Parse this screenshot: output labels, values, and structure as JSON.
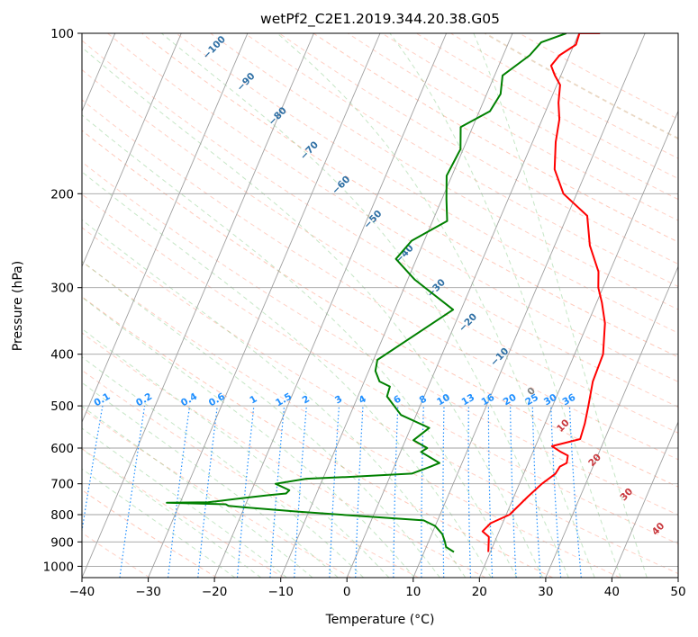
{
  "chart_data": {
    "type": "line",
    "subtype": "skew-t log-p diagram",
    "title": "wetPf2_C2E1.2019.344.20.38.G05",
    "xlabel": "Temperature (°C)",
    "ylabel": "Pressure (hPa)",
    "xlim": [
      -40,
      50
    ],
    "ylim": [
      1050,
      100
    ],
    "y_scale": "log",
    "grid": true,
    "x_ticks": [
      "−40",
      "−30",
      "−20",
      "−10",
      "0",
      "10",
      "20",
      "30",
      "40",
      "50"
    ],
    "y_ticks": [
      "100",
      "200",
      "300",
      "400",
      "500",
      "600",
      "700",
      "800",
      "900",
      "1000"
    ],
    "series": [
      {
        "role": "temperature",
        "color": "#ff0000",
        "x": [
          19.7,
          18.8,
          17.5,
          18.2,
          20.5,
          22.1,
          23.4,
          24.8,
          25.0,
          25.8,
          25.5,
          24.2,
          22.5,
          26.3,
          26.0,
          25.4,
          24.5,
          24.3,
          22.6,
          20.8,
          19.3,
          18.3,
          15.3,
          13.0,
          8.0,
          5.1,
          3.5,
          2.6,
          1.4,
          0.5,
          -0.9,
          -2.1,
          -1.5,
          0.3,
          0.1,
          3.2
        ],
        "y": [
          940,
          880,
          860,
          830,
          800,
          740,
          700,
          670,
          650,
          640,
          620,
          610,
          595,
          577,
          540,
          500,
          450,
          400,
          350,
          320,
          300,
          280,
          250,
          220,
          200,
          180,
          160,
          145,
          135,
          125,
          120,
          115,
          110,
          105,
          100,
          100
        ]
      },
      {
        "role": "dewpoint",
        "color": "#008000",
        "x": [
          14.5,
          13.0,
          12.5,
          11.6,
          10.0,
          7.9,
          -11.5,
          -20.0,
          -22.5,
          -23.0,
          -32.0,
          -25.8,
          -24.5,
          -21.0,
          -17.0,
          -14.6,
          -14.3,
          -16.8,
          -12.5,
          -6.6,
          3.1,
          5.5,
          6.6,
          3.1,
          3.8,
          1.2,
          2.8,
          -2.3,
          -5.6,
          -5.8,
          -7.7,
          -9.0,
          -9.4,
          -1.2,
          -8.9,
          -13.1,
          -11.9,
          -7.8,
          -9.3,
          -10.8,
          -10.4,
          -11.8,
          -8.4,
          -7.9,
          -8.8,
          -6.0,
          -5.1,
          -1.9
        ],
        "y": [
          940,
          920,
          900,
          870,
          840,
          820,
          790,
          775,
          770,
          765,
          760,
          758,
          755,
          745,
          735,
          730,
          720,
          700,
          685,
          680,
          670,
          650,
          640,
          610,
          600,
          580,
          550,
          520,
          480,
          460,
          450,
          430,
          410,
          330,
          290,
          265,
          245,
          225,
          205,
          185,
          165,
          150,
          140,
          130,
          120,
          110,
          104,
          100
        ]
      }
    ],
    "annotations": {
      "dry_adiabat_labels": [
        "−100",
        "−90",
        "−80",
        "−70",
        "−60",
        "−50",
        "−40",
        "−30",
        "−20",
        "−10",
        "0",
        "10",
        "20",
        "30",
        "40"
      ],
      "mixing_ratio_labels": [
        "0.1",
        "0.2",
        "0.4",
        "0.6",
        "1",
        "1.5",
        "2",
        "3",
        "4",
        "6",
        "8",
        "10",
        "13",
        "16",
        "20",
        "25",
        "30",
        "36"
      ]
    },
    "colors": {
      "temperature": "#ff0000",
      "dewpoint": "#008000",
      "dry_adiabat_label_cold": "#2e6fa4",
      "dry_adiabat_label_zero": "#7f7f7f",
      "dry_adiabat_label_warm": "#c8373c",
      "mixing_ratio": "#1f8fff",
      "dry_adiabats": "#ff9a80",
      "moist_adiabats": "#5cb85c",
      "isotherms": "#a0a0a0",
      "isobars": "#a0a0a0"
    }
  }
}
